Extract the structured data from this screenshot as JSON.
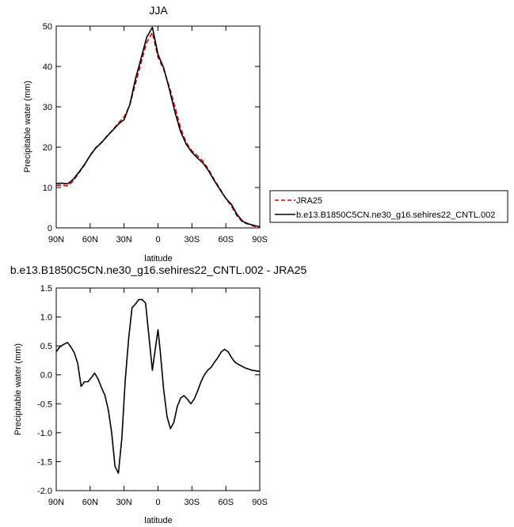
{
  "chart_data": [
    {
      "type": "line",
      "title": "JJA",
      "xlabel": "latitude",
      "ylabel": "Precipitable water (mm)",
      "xlim": [
        90,
        -90
      ],
      "ylim": [
        0,
        50
      ],
      "x_ticks": [
        90,
        60,
        30,
        0,
        -30,
        -60,
        -90
      ],
      "x_tick_labels": [
        "90N",
        "60N",
        "30N",
        "0",
        "30S",
        "60S",
        "90S"
      ],
      "y_ticks": [
        0,
        10,
        20,
        30,
        40,
        50
      ],
      "y_tick_labels": [
        "0",
        "10",
        "20",
        "30",
        "40",
        "50"
      ],
      "legend_position": "right",
      "x": [
        90,
        85,
        80,
        75,
        70,
        65,
        60,
        55,
        50,
        45,
        40,
        35,
        30,
        25,
        20,
        15,
        10,
        5,
        0,
        -5,
        -10,
        -15,
        -20,
        -25,
        -30,
        -35,
        -40,
        -45,
        -50,
        -55,
        -60,
        -65,
        -70,
        -75,
        -80,
        -85,
        -90
      ],
      "series": [
        {
          "name": "JRA25",
          "color": "#cc0000",
          "dash": "dashed",
          "values": [
            10.5,
            10.6,
            10.4,
            11.6,
            13.6,
            15.6,
            18.0,
            19.9,
            21.2,
            22.8,
            24.3,
            26.0,
            27.5,
            30.4,
            35.6,
            40.9,
            45.9,
            48.4,
            42.3,
            39.3,
            35.0,
            30.0,
            24.7,
            21.1,
            19.1,
            17.8,
            16.5,
            14.3,
            11.8,
            9.6,
            7.3,
            5.4,
            2.9,
            1.4,
            0.9,
            0.4,
            0.2
          ]
        },
        {
          "name": "b.e13.B1850C5CN.ne30_g16.sehires22_CNTL.002",
          "color": "#000000",
          "dash": "solid",
          "values": [
            11.0,
            11.1,
            10.9,
            12.0,
            13.8,
            15.7,
            17.9,
            19.8,
            21.1,
            22.7,
            24.2,
            25.7,
            26.8,
            30.5,
            36.8,
            42.0,
            47.2,
            49.7,
            43.0,
            39.7,
            34.4,
            28.7,
            23.8,
            20.7,
            18.7,
            17.3,
            16.0,
            14.0,
            11.6,
            9.4,
            7.3,
            5.8,
            3.3,
            1.6,
            1.0,
            0.6,
            0.3
          ]
        }
      ]
    },
    {
      "type": "line",
      "title": "b.e13.B1850C5CN.ne30_g16.sehires22_CNTL.002 - JRA25",
      "xlabel": "latitude",
      "ylabel": "Precipitable water (mm)",
      "xlim": [
        90,
        -90
      ],
      "ylim": [
        -2.0,
        1.5
      ],
      "x_ticks": [
        90,
        60,
        30,
        0,
        -30,
        -60,
        -90
      ],
      "x_tick_labels": [
        "90N",
        "60N",
        "30N",
        "0",
        "30S",
        "60S",
        "90S"
      ],
      "y_ticks": [
        -2.0,
        -1.5,
        -1.0,
        -0.5,
        0.0,
        0.5,
        1.0,
        1.5
      ],
      "y_tick_labels": [
        "-2.0",
        "-1.5",
        "-1.0",
        "-0.5",
        "0.0",
        "0.5",
        "1.0",
        "1.5"
      ],
      "x": [
        90,
        87,
        84,
        80,
        77,
        74,
        71,
        68,
        65,
        62,
        59,
        56,
        53,
        50,
        47,
        44,
        41,
        38,
        35,
        32,
        29,
        26,
        23,
        20,
        17,
        14,
        11,
        8,
        5,
        2,
        0,
        -2,
        -5,
        -8,
        -11,
        -14,
        -17,
        -20,
        -23,
        -26,
        -29,
        -32,
        -35,
        -38,
        -41,
        -44,
        -47,
        -50,
        -53,
        -56,
        -59,
        -62,
        -65,
        -68,
        -71,
        -74,
        -77,
        -80,
        -83,
        -86,
        -90
      ],
      "series": [
        {
          "name": "",
          "color": "#000000",
          "dash": "solid",
          "values": [
            0.4,
            0.48,
            0.52,
            0.56,
            0.48,
            0.38,
            0.2,
            -0.2,
            -0.12,
            -0.12,
            -0.05,
            0.03,
            -0.07,
            -0.22,
            -0.35,
            -0.6,
            -1.0,
            -1.58,
            -1.7,
            -1.1,
            -0.1,
            0.62,
            1.16,
            1.22,
            1.3,
            1.3,
            1.24,
            0.66,
            0.08,
            0.5,
            0.78,
            0.4,
            -0.25,
            -0.72,
            -0.93,
            -0.82,
            -0.55,
            -0.4,
            -0.36,
            -0.42,
            -0.5,
            -0.42,
            -0.28,
            -0.12,
            0.0,
            0.08,
            0.13,
            0.22,
            0.3,
            0.4,
            0.44,
            0.4,
            0.3,
            0.22,
            0.18,
            0.15,
            0.12,
            0.1,
            0.08,
            0.07,
            0.06
          ]
        }
      ]
    }
  ]
}
